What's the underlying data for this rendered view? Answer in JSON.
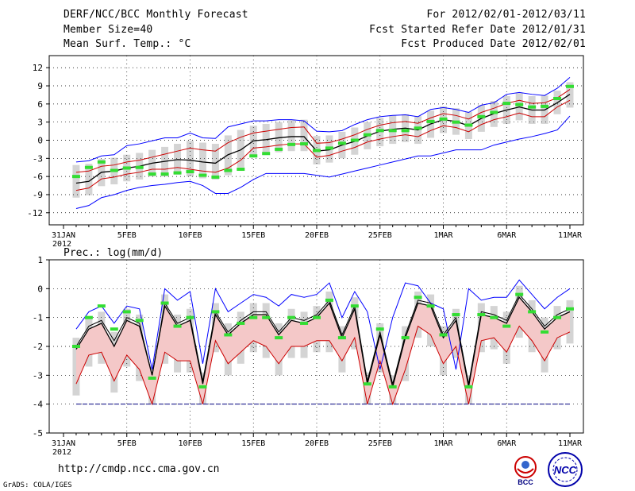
{
  "header": {
    "title": "DERF/NCC/BCC Monthly Forecast",
    "member_size": "Member Size=40",
    "variable": "Mean Surf. Temp.: °C",
    "period": "For 2012/02/01-2012/03/11",
    "started": "Fcst Started Refer Date 2012/01/31",
    "produced": "Fcst Produced Date 2012/02/01"
  },
  "footer": {
    "url": "http://cmdp.ncc.cma.gov.cn",
    "credit": "GrADS: COLA/IGES",
    "logo_bcc": "BCC",
    "logo_ncc": "NCC"
  },
  "chart_data": [
    {
      "type": "line",
      "title": "Mean Surf. Temp.: °C",
      "xlabel": "",
      "ylabel": "",
      "ylim": [
        -14,
        14
      ],
      "yticks": [
        -12,
        -9,
        -6,
        -3,
        0,
        3,
        6,
        9,
        12
      ],
      "xlabels": [
        {
          "day": 0,
          "label": "31JAN"
        },
        {
          "day": 5,
          "label": "5FEB"
        },
        {
          "day": 10,
          "label": "10FEB"
        },
        {
          "day": 15,
          "label": "15FEB"
        },
        {
          "day": 20,
          "label": "20FEB"
        },
        {
          "day": 25,
          "label": "25FEB"
        },
        {
          "day": 30,
          "label": "1MAR"
        },
        {
          "day": 35,
          "label": "6MAR"
        },
        {
          "day": 40,
          "label": "11MAR"
        }
      ],
      "year_label": "2012",
      "days": [
        1,
        2,
        3,
        4,
        5,
        6,
        7,
        8,
        9,
        10,
        11,
        12,
        13,
        14,
        15,
        16,
        17,
        18,
        19,
        20,
        21,
        22,
        23,
        24,
        25,
        26,
        27,
        28,
        29,
        30,
        31,
        32,
        33,
        34,
        35,
        36,
        37,
        38,
        39,
        40
      ],
      "series": [
        {
          "name": "ensemble max",
          "color": "#0000ff",
          "values": [
            -11.3,
            -10.8,
            -9.5,
            -9.0,
            -8.3,
            -7.8,
            -7.5,
            -7.3,
            -7.0,
            -6.8,
            -7.5,
            -8.8,
            -8.8,
            -7.8,
            -6.5,
            -5.5,
            -5.5,
            -5.5,
            -5.5,
            -5.8,
            -6.1,
            -5.6,
            -5.1,
            -4.6,
            -4.1,
            -3.6,
            -3.1,
            -2.6,
            -2.6,
            -2.1,
            -1.6,
            -1.6,
            -1.6,
            -0.8,
            -0.3,
            0.2,
            0.6,
            1.1,
            1.7,
            4.0
          ]
        },
        {
          "name": "ensemble min",
          "color": "#0000ff",
          "values": [
            -3.6,
            -3.4,
            -2.6,
            -2.4,
            -0.9,
            -0.6,
            -0.1,
            0.4,
            0.4,
            1.2,
            0.4,
            0.3,
            2.2,
            2.7,
            3.2,
            3.2,
            3.4,
            3.4,
            3.2,
            1.5,
            1.4,
            1.6,
            2.6,
            3.4,
            3.9,
            4.1,
            4.2,
            3.9,
            5.1,
            5.4,
            5.1,
            4.6,
            5.8,
            6.2,
            7.6,
            7.9,
            7.6,
            7.4,
            8.6,
            10.4
          ]
        },
        {
          "name": "+1 std",
          "color": "#cc0000",
          "values": [
            -5.3,
            -5.1,
            -4.3,
            -4.1,
            -3.6,
            -3.3,
            -2.8,
            -2.3,
            -1.8,
            -1.3,
            -1.6,
            -1.8,
            -0.4,
            0.5,
            1.2,
            1.5,
            1.8,
            2.1,
            2.2,
            -0.5,
            -0.4,
            0.2,
            0.9,
            1.8,
            2.5,
            2.9,
            3.1,
            2.8,
            3.7,
            4.4,
            4.1,
            3.5,
            4.6,
            5.3,
            6.1,
            6.6,
            6.1,
            6.2,
            7.0,
            8.4
          ]
        },
        {
          "name": "-1 std",
          "color": "#cc0000",
          "values": [
            -8.3,
            -7.9,
            -6.4,
            -6.1,
            -5.6,
            -5.3,
            -4.8,
            -4.8,
            -4.5,
            -4.8,
            -5.1,
            -5.3,
            -4.6,
            -3.3,
            -1.3,
            -1.1,
            -0.8,
            -0.6,
            -0.6,
            -2.8,
            -2.5,
            -1.8,
            -1.2,
            -0.3,
            0.2,
            0.6,
            0.9,
            0.6,
            1.6,
            2.4,
            2.1,
            1.4,
            2.6,
            3.4,
            3.9,
            4.5,
            3.9,
            3.9,
            5.5,
            6.6
          ]
        },
        {
          "name": "ensemble mean",
          "color": "#000000",
          "values": [
            -7.1,
            -6.8,
            -5.3,
            -5.1,
            -4.6,
            -4.3,
            -3.8,
            -3.5,
            -3.2,
            -3.3,
            -3.6,
            -3.8,
            -2.4,
            -1.6,
            -0.1,
            0.1,
            0.4,
            0.6,
            0.6,
            -1.8,
            -1.6,
            -0.8,
            -0.2,
            0.7,
            1.5,
            1.8,
            2.0,
            1.7,
            2.7,
            3.4,
            3.1,
            2.4,
            3.6,
            4.4,
            5.0,
            5.5,
            5.0,
            5.0,
            6.2,
            7.6
          ]
        },
        {
          "name": "median marker",
          "color": "#33dd33",
          "values": [
            -6.0,
            -4.5,
            -3.6,
            -5.0,
            -4.6,
            -4.5,
            -5.6,
            -5.6,
            -5.4,
            -5.2,
            -5.8,
            -6.1,
            -5.0,
            -4.8,
            -2.6,
            -2.2,
            -1.5,
            -0.7,
            -0.6,
            -1.7,
            -1.3,
            -0.5,
            0.0,
            0.9,
            1.6,
            1.6,
            1.6,
            2.0,
            3.1,
            3.5,
            3.0,
            2.5,
            3.9,
            4.6,
            6.1,
            5.9,
            5.5,
            5.6,
            6.9,
            8.9
          ]
        }
      ]
    },
    {
      "type": "line",
      "title": "Prec.: log(mm/d)",
      "xlabel": "",
      "ylabel": "",
      "ylim": [
        -5,
        1
      ],
      "yticks": [
        -5,
        -4,
        -3,
        -2,
        -1,
        0,
        1
      ],
      "xlabels": [
        {
          "day": 0,
          "label": "31JAN"
        },
        {
          "day": 5,
          "label": "5FEB"
        },
        {
          "day": 10,
          "label": "10FEB"
        },
        {
          "day": 15,
          "label": "15FEB"
        },
        {
          "day": 20,
          "label": "20FEB"
        },
        {
          "day": 25,
          "label": "25FEB"
        },
        {
          "day": 30,
          "label": "1MAR"
        },
        {
          "day": 35,
          "label": "6MAR"
        },
        {
          "day": 40,
          "label": "11MAR"
        }
      ],
      "year_label": "2012",
      "days": [
        1,
        2,
        3,
        4,
        5,
        6,
        7,
        8,
        9,
        10,
        11,
        12,
        13,
        14,
        15,
        16,
        17,
        18,
        19,
        20,
        21,
        22,
        23,
        24,
        25,
        26,
        27,
        28,
        29,
        30,
        31,
        32,
        33,
        34,
        35,
        36,
        37,
        38,
        39,
        40
      ],
      "series": [
        {
          "name": "ensemble max",
          "color": "#0000ff",
          "values": [
            -1.4,
            -0.8,
            -0.6,
            -1.2,
            -0.6,
            -0.7,
            -2.8,
            0.0,
            -0.4,
            -0.1,
            -2.6,
            0.0,
            -0.8,
            -0.5,
            -0.2,
            -0.3,
            -0.6,
            -0.2,
            -0.3,
            -0.2,
            0.2,
            -1.0,
            -0.1,
            -0.8,
            -2.8,
            -1.0,
            0.2,
            0.1,
            -0.5,
            -0.7,
            -2.8,
            0.0,
            -0.4,
            -0.3,
            -0.3,
            0.3,
            -0.2,
            -0.7,
            -0.3,
            0.0
          ]
        },
        {
          "name": "+1 std",
          "color": "#000000",
          "values": [
            -2.0,
            -1.3,
            -1.1,
            -1.8,
            -1.0,
            -1.2,
            -3.0,
            -0.5,
            -1.2,
            -1.0,
            -3.2,
            -0.8,
            -1.5,
            -1.1,
            -0.8,
            -0.8,
            -1.5,
            -1.0,
            -1.1,
            -0.9,
            -0.4,
            -1.6,
            -0.6,
            -3.2,
            -1.5,
            -3.3,
            -1.6,
            -0.4,
            -0.5,
            -1.6,
            -1.0,
            -3.3,
            -0.8,
            -0.9,
            -1.1,
            -0.2,
            -0.7,
            -1.3,
            -0.9,
            -0.7
          ]
        },
        {
          "name": "-1 std",
          "color": "#cc0000",
          "values": [
            -3.3,
            -2.3,
            -2.2,
            -3.2,
            -2.3,
            -2.8,
            -4.0,
            -2.2,
            -2.5,
            -2.5,
            -4.0,
            -1.8,
            -2.6,
            -2.2,
            -1.8,
            -2.0,
            -2.6,
            -2.0,
            -2.0,
            -1.8,
            -1.8,
            -2.5,
            -1.7,
            -4.0,
            -2.5,
            -4.0,
            -2.8,
            -1.3,
            -1.6,
            -2.6,
            -2.0,
            -4.0,
            -1.8,
            -1.7,
            -2.2,
            -1.3,
            -1.8,
            -2.5,
            -1.7,
            -1.5
          ]
        },
        {
          "name": "ensemble mean",
          "color": "#000000",
          "values": [
            -2.1,
            -1.4,
            -1.2,
            -2.0,
            -1.1,
            -1.3,
            -3.0,
            -0.6,
            -1.3,
            -1.1,
            -3.3,
            -0.9,
            -1.6,
            -1.2,
            -0.9,
            -0.9,
            -1.6,
            -1.1,
            -1.2,
            -1.0,
            -0.5,
            -1.7,
            -0.7,
            -3.3,
            -1.6,
            -3.4,
            -1.7,
            -0.5,
            -0.6,
            -1.7,
            -1.1,
            -3.4,
            -0.9,
            -1.0,
            -1.2,
            -0.3,
            -0.8,
            -1.4,
            -1.0,
            -0.8
          ]
        },
        {
          "name": "min floor",
          "color": "#000080",
          "values": [
            -4,
            -4,
            -4,
            -4,
            -4,
            -4,
            -4,
            -4,
            -4,
            -4,
            -4,
            -4,
            -4,
            -4,
            -4,
            -4,
            -4,
            -4,
            -4,
            -4,
            -4,
            -4,
            -4,
            -4,
            -4,
            -4,
            -4,
            -4,
            -4,
            -4,
            -4,
            -4,
            -4,
            -4,
            -4,
            -4,
            -4,
            -4,
            -4,
            -4
          ]
        },
        {
          "name": "median marker",
          "color": "#33dd33",
          "values": [
            -2.0,
            -1.0,
            -0.6,
            -1.4,
            -0.8,
            -1.1,
            -3.1,
            -0.5,
            -1.3,
            -1.0,
            -3.4,
            -0.8,
            -1.6,
            -1.2,
            -1.0,
            -1.0,
            -1.7,
            -1.0,
            -1.2,
            -1.0,
            -0.4,
            -1.7,
            -0.6,
            -3.3,
            -1.4,
            -3.4,
            -1.7,
            -0.3,
            -0.6,
            -1.6,
            -0.9,
            -3.4,
            -0.9,
            -1.0,
            -1.3,
            -0.2,
            -0.8,
            -1.5,
            -1.0,
            -0.7
          ]
        }
      ]
    }
  ]
}
